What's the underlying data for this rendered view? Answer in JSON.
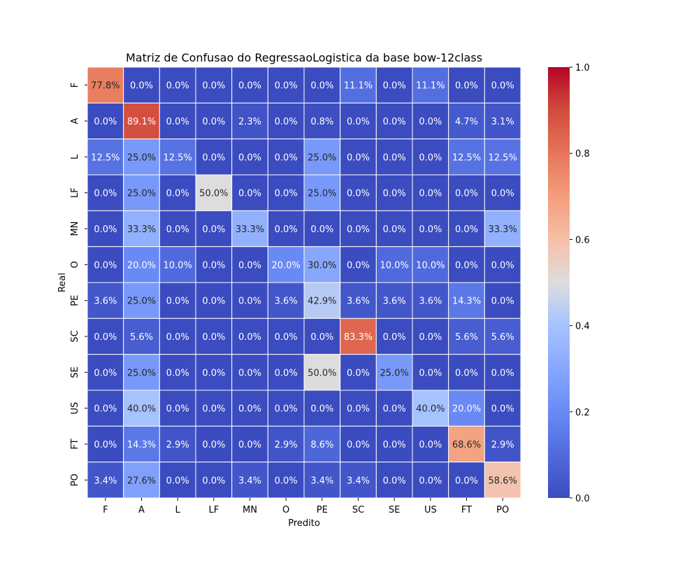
{
  "chart_data": {
    "type": "heatmap",
    "title": "Matriz de Confusao do RegressaoLogistica da base bow-12class",
    "xlabel": "Predito",
    "ylabel": "Real",
    "x_categories": [
      "F",
      "A",
      "L",
      "LF",
      "MN",
      "O",
      "PE",
      "SC",
      "SE",
      "US",
      "FT",
      "PO"
    ],
    "y_categories": [
      "F",
      "A",
      "L",
      "LF",
      "MN",
      "O",
      "PE",
      "SC",
      "SE",
      "US",
      "FT",
      "PO"
    ],
    "values": [
      [
        0.778,
        0.0,
        0.0,
        0.0,
        0.0,
        0.0,
        0.0,
        0.111,
        0.0,
        0.111,
        0.0,
        0.0
      ],
      [
        0.0,
        0.891,
        0.0,
        0.0,
        0.023,
        0.0,
        0.008,
        0.0,
        0.0,
        0.0,
        0.047,
        0.031
      ],
      [
        0.125,
        0.25,
        0.125,
        0.0,
        0.0,
        0.0,
        0.25,
        0.0,
        0.0,
        0.0,
        0.125,
        0.125
      ],
      [
        0.0,
        0.25,
        0.0,
        0.5,
        0.0,
        0.0,
        0.25,
        0.0,
        0.0,
        0.0,
        0.0,
        0.0
      ],
      [
        0.0,
        0.333,
        0.0,
        0.0,
        0.333,
        0.0,
        0.0,
        0.0,
        0.0,
        0.0,
        0.0,
        0.333
      ],
      [
        0.0,
        0.2,
        0.1,
        0.0,
        0.0,
        0.2,
        0.3,
        0.0,
        0.1,
        0.1,
        0.0,
        0.0
      ],
      [
        0.036,
        0.25,
        0.0,
        0.0,
        0.0,
        0.036,
        0.429,
        0.036,
        0.036,
        0.036,
        0.143,
        0.0
      ],
      [
        0.0,
        0.056,
        0.0,
        0.0,
        0.0,
        0.0,
        0.0,
        0.833,
        0.0,
        0.0,
        0.056,
        0.056
      ],
      [
        0.0,
        0.25,
        0.0,
        0.0,
        0.0,
        0.0,
        0.5,
        0.0,
        0.25,
        0.0,
        0.0,
        0.0
      ],
      [
        0.0,
        0.4,
        0.0,
        0.0,
        0.0,
        0.0,
        0.0,
        0.0,
        0.0,
        0.4,
        0.2,
        0.0
      ],
      [
        0.0,
        0.143,
        0.029,
        0.0,
        0.0,
        0.029,
        0.086,
        0.0,
        0.0,
        0.0,
        0.686,
        0.029
      ],
      [
        0.034,
        0.276,
        0.0,
        0.0,
        0.034,
        0.0,
        0.034,
        0.034,
        0.0,
        0.0,
        0.0,
        0.586
      ]
    ],
    "cell_labels": [
      [
        "77.8%",
        "0.0%",
        "0.0%",
        "0.0%",
        "0.0%",
        "0.0%",
        "0.0%",
        "11.1%",
        "0.0%",
        "11.1%",
        "0.0%",
        "0.0%"
      ],
      [
        "0.0%",
        "89.1%",
        "0.0%",
        "0.0%",
        "2.3%",
        "0.0%",
        "0.8%",
        "0.0%",
        "0.0%",
        "0.0%",
        "4.7%",
        "3.1%"
      ],
      [
        "12.5%",
        "25.0%",
        "12.5%",
        "0.0%",
        "0.0%",
        "0.0%",
        "25.0%",
        "0.0%",
        "0.0%",
        "0.0%",
        "12.5%",
        "12.5%"
      ],
      [
        "0.0%",
        "25.0%",
        "0.0%",
        "50.0%",
        "0.0%",
        "0.0%",
        "25.0%",
        "0.0%",
        "0.0%",
        "0.0%",
        "0.0%",
        "0.0%"
      ],
      [
        "0.0%",
        "33.3%",
        "0.0%",
        "0.0%",
        "33.3%",
        "0.0%",
        "0.0%",
        "0.0%",
        "0.0%",
        "0.0%",
        "0.0%",
        "33.3%"
      ],
      [
        "0.0%",
        "20.0%",
        "10.0%",
        "0.0%",
        "0.0%",
        "20.0%",
        "30.0%",
        "0.0%",
        "10.0%",
        "10.0%",
        "0.0%",
        "0.0%"
      ],
      [
        "3.6%",
        "25.0%",
        "0.0%",
        "0.0%",
        "0.0%",
        "3.6%",
        "42.9%",
        "3.6%",
        "3.6%",
        "3.6%",
        "14.3%",
        "0.0%"
      ],
      [
        "0.0%",
        "5.6%",
        "0.0%",
        "0.0%",
        "0.0%",
        "0.0%",
        "0.0%",
        "83.3%",
        "0.0%",
        "0.0%",
        "5.6%",
        "5.6%"
      ],
      [
        "0.0%",
        "25.0%",
        "0.0%",
        "0.0%",
        "0.0%",
        "0.0%",
        "50.0%",
        "0.0%",
        "25.0%",
        "0.0%",
        "0.0%",
        "0.0%"
      ],
      [
        "0.0%",
        "40.0%",
        "0.0%",
        "0.0%",
        "0.0%",
        "0.0%",
        "0.0%",
        "0.0%",
        "0.0%",
        "40.0%",
        "20.0%",
        "0.0%"
      ],
      [
        "0.0%",
        "14.3%",
        "2.9%",
        "0.0%",
        "0.0%",
        "2.9%",
        "8.6%",
        "0.0%",
        "0.0%",
        "0.0%",
        "68.6%",
        "2.9%"
      ],
      [
        "3.4%",
        "27.6%",
        "0.0%",
        "0.0%",
        "3.4%",
        "0.0%",
        "3.4%",
        "3.4%",
        "0.0%",
        "0.0%",
        "0.0%",
        "58.6%"
      ]
    ],
    "colorbar": {
      "colormap": "coolwarm",
      "range": [
        0.0,
        1.0
      ],
      "ticks": [
        0.0,
        0.2,
        0.4,
        0.6,
        0.8,
        1.0
      ],
      "tick_labels": [
        "0.0",
        "0.2",
        "0.4",
        "0.6",
        "0.8",
        "1.0"
      ]
    },
    "grid": false,
    "legend": "colorbar-right"
  }
}
